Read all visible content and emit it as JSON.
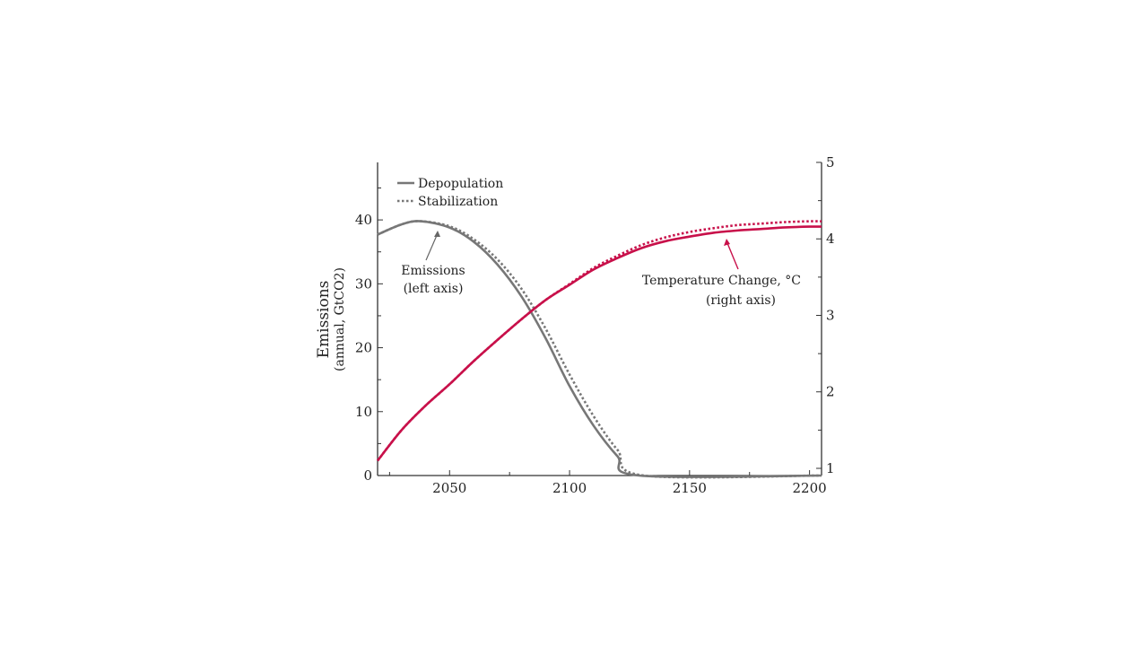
{
  "chart_data": {
    "type": "line",
    "title": "",
    "xlabel": "",
    "ylabel": "Emissions",
    "ylabel_sub": "(annual, GtCO2)",
    "xlim": [
      2020,
      2205
    ],
    "ylim_left": [
      0,
      49
    ],
    "ylim_right": [
      0.906,
      5
    ],
    "x_ticks": [
      2050,
      2100,
      2150,
      2200
    ],
    "y_left_ticks": [
      0,
      10,
      20,
      30,
      40
    ],
    "y_right_ticks": [
      1,
      2,
      3,
      4,
      5
    ],
    "grid": false,
    "legend": {
      "placement": "top-left",
      "entries": [
        "Depopulation",
        "Stabilization"
      ]
    },
    "annotations": {
      "emissions": [
        "Emissions",
        "(left axis)"
      ],
      "temperature": [
        "Temperature Change, °C",
        "(right axis)"
      ]
    },
    "colors": {
      "emissions": "#777777",
      "temperature": "#c8104a",
      "axis": "#333333"
    },
    "series": [
      {
        "name": "Depopulation",
        "kind": "emissions",
        "axis": "left",
        "style": "solid",
        "x": [
          2020,
          2030,
          2038,
          2050,
          2060,
          2070,
          2080,
          2090,
          2100,
          2110,
          2120,
          2129,
          2205
        ],
        "y": [
          37.7,
          39.3,
          39.8,
          38.8,
          36.6,
          33.0,
          28.0,
          21.5,
          14.0,
          7.8,
          3.0,
          0,
          0
        ]
      },
      {
        "name": "Stabilization",
        "kind": "emissions",
        "axis": "left",
        "style": "dotted",
        "x": [
          2020,
          2030,
          2038,
          2050,
          2060,
          2070,
          2080,
          2090,
          2100,
          2110,
          2120,
          2131,
          2205
        ],
        "y": [
          37.7,
          39.3,
          39.8,
          39.0,
          37.0,
          33.8,
          29.2,
          23.0,
          15.8,
          9.3,
          4.0,
          0,
          0
        ]
      },
      {
        "name": "Depopulation",
        "kind": "temperature",
        "axis": "right",
        "style": "solid",
        "x": [
          2020,
          2030,
          2040,
          2050,
          2060,
          2070,
          2080,
          2090,
          2100,
          2110,
          2120,
          2130,
          2140,
          2150,
          2160,
          2170,
          2180,
          2190,
          2200,
          2205
        ],
        "y": [
          1.1,
          1.5,
          1.82,
          2.1,
          2.4,
          2.68,
          2.95,
          3.2,
          3.4,
          3.6,
          3.75,
          3.88,
          3.97,
          4.03,
          4.08,
          4.11,
          4.13,
          4.15,
          4.16,
          4.16
        ]
      },
      {
        "name": "Stabilization",
        "kind": "temperature",
        "axis": "right",
        "style": "dotted",
        "x": [
          2020,
          2030,
          2040,
          2050,
          2060,
          2070,
          2080,
          2090,
          2100,
          2110,
          2120,
          2130,
          2140,
          2150,
          2160,
          2170,
          2180,
          2190,
          2200,
          2205
        ],
        "y": [
          1.1,
          1.5,
          1.82,
          2.1,
          2.4,
          2.68,
          2.95,
          3.2,
          3.41,
          3.62,
          3.78,
          3.92,
          4.02,
          4.09,
          4.14,
          4.18,
          4.2,
          4.22,
          4.23,
          4.23
        ]
      }
    ]
  }
}
